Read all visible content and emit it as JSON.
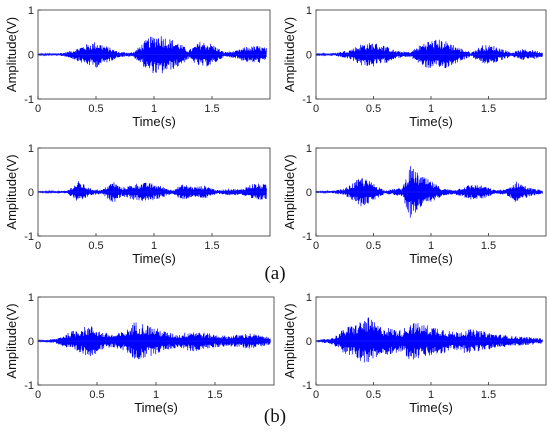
{
  "figure": {
    "captions": [
      "(a)",
      "(b)"
    ]
  },
  "chart_data": [
    {
      "type": "line",
      "panel": "a-1",
      "xlabel": "Time(s)",
      "ylabel": "Amplitude(V)",
      "xlim": [
        0,
        2
      ],
      "ylim": [
        -1,
        1
      ],
      "xticks": [
        0,
        0.5,
        1,
        1.5
      ],
      "yticks": [
        -1,
        0,
        1
      ],
      "color": "#0000ff",
      "envelope": {
        "x": [
          0.0,
          0.22,
          0.3,
          0.4,
          0.5,
          0.6,
          0.7,
          0.82,
          0.95,
          1.05,
          1.1,
          1.2,
          1.3,
          1.4,
          1.5,
          1.6,
          1.7,
          1.8,
          1.9,
          1.97
        ],
        "amp": [
          0.01,
          0.04,
          0.1,
          0.22,
          0.3,
          0.18,
          0.06,
          0.05,
          0.38,
          0.48,
          0.4,
          0.3,
          0.1,
          0.3,
          0.25,
          0.06,
          0.08,
          0.18,
          0.2,
          0.15
        ]
      }
    },
    {
      "type": "line",
      "panel": "a-2",
      "xlabel": "Time(s)",
      "ylabel": "Amplitude(V)",
      "xlim": [
        0,
        2
      ],
      "ylim": [
        -1,
        1
      ],
      "xticks": [
        0,
        0.5,
        1,
        1.5
      ],
      "yticks": [
        -1,
        0,
        1
      ],
      "color": "#0000ff",
      "envelope": {
        "x": [
          0.0,
          0.18,
          0.3,
          0.4,
          0.5,
          0.6,
          0.7,
          0.82,
          0.95,
          1.05,
          1.15,
          1.25,
          1.35,
          1.45,
          1.55,
          1.7,
          1.8,
          1.9,
          1.97
        ],
        "amp": [
          0.01,
          0.04,
          0.12,
          0.25,
          0.28,
          0.2,
          0.08,
          0.06,
          0.3,
          0.35,
          0.3,
          0.15,
          0.05,
          0.22,
          0.2,
          0.05,
          0.12,
          0.1,
          0.05
        ]
      }
    },
    {
      "type": "line",
      "panel": "a-3",
      "xlabel": "Time(s)",
      "ylabel": "Amplitude(V)",
      "xlim": [
        0,
        2
      ],
      "ylim": [
        -1,
        1
      ],
      "xticks": [
        0,
        0.5,
        1,
        1.5
      ],
      "yticks": [
        -1,
        0,
        1
      ],
      "color": "#0000ff",
      "envelope": {
        "x": [
          0.0,
          0.25,
          0.35,
          0.45,
          0.55,
          0.65,
          0.72,
          0.85,
          0.95,
          1.05,
          1.15,
          1.25,
          1.35,
          1.45,
          1.55,
          1.65,
          1.75,
          1.85,
          1.97
        ],
        "amp": [
          0.01,
          0.03,
          0.25,
          0.08,
          0.05,
          0.25,
          0.1,
          0.2,
          0.22,
          0.15,
          0.05,
          0.18,
          0.12,
          0.15,
          0.04,
          0.08,
          0.06,
          0.2,
          0.18
        ]
      }
    },
    {
      "type": "line",
      "panel": "a-4",
      "xlabel": "Time(s)",
      "ylabel": "Amplitude(V)",
      "xlim": [
        0,
        2
      ],
      "ylim": [
        -1,
        1
      ],
      "xticks": [
        0,
        0.5,
        1,
        1.5
      ],
      "yticks": [
        -1,
        0,
        1
      ],
      "color": "#0000ff",
      "envelope": {
        "x": [
          0.0,
          0.15,
          0.25,
          0.4,
          0.5,
          0.6,
          0.75,
          0.82,
          0.9,
          1.0,
          1.1,
          1.2,
          1.35,
          1.45,
          1.55,
          1.65,
          1.75,
          1.85,
          1.97
        ],
        "amp": [
          0.01,
          0.03,
          0.08,
          0.35,
          0.2,
          0.04,
          0.1,
          0.6,
          0.4,
          0.25,
          0.08,
          0.05,
          0.18,
          0.15,
          0.05,
          0.06,
          0.25,
          0.1,
          0.04
        ]
      }
    },
    {
      "type": "line",
      "panel": "b-1",
      "xlabel": "Time(s)",
      "ylabel": "Amplitude(V)",
      "xlim": [
        0,
        2
      ],
      "ylim": [
        -1,
        1
      ],
      "xticks": [
        0,
        0.5,
        1,
        1.5
      ],
      "yticks": [
        -1,
        0,
        1
      ],
      "color": "#0000ff",
      "envelope": {
        "x": [
          0.0,
          0.15,
          0.25,
          0.35,
          0.45,
          0.55,
          0.65,
          0.75,
          0.82,
          0.9,
          1.0,
          1.1,
          1.2,
          1.3,
          1.4,
          1.5,
          1.6,
          1.7,
          1.8,
          1.9,
          1.97
        ],
        "amp": [
          0.01,
          0.05,
          0.18,
          0.3,
          0.35,
          0.2,
          0.15,
          0.25,
          0.45,
          0.4,
          0.3,
          0.2,
          0.15,
          0.25,
          0.2,
          0.15,
          0.12,
          0.15,
          0.18,
          0.12,
          0.08
        ]
      }
    },
    {
      "type": "line",
      "panel": "b-2",
      "xlabel": "Time(s)",
      "ylabel": "Amplitude(V)",
      "xlim": [
        0,
        2
      ],
      "ylim": [
        -1,
        1
      ],
      "xticks": [
        0,
        0.5,
        1,
        1.5
      ],
      "yticks": [
        -1,
        0,
        1
      ],
      "color": "#0000ff",
      "envelope": {
        "x": [
          0.0,
          0.15,
          0.25,
          0.35,
          0.45,
          0.55,
          0.65,
          0.75,
          0.82,
          0.9,
          1.0,
          1.1,
          1.2,
          1.3,
          1.4,
          1.5,
          1.6,
          1.7,
          1.8,
          1.9,
          1.97
        ],
        "amp": [
          0.01,
          0.08,
          0.3,
          0.4,
          0.55,
          0.35,
          0.3,
          0.25,
          0.45,
          0.4,
          0.35,
          0.3,
          0.2,
          0.28,
          0.25,
          0.2,
          0.15,
          0.12,
          0.1,
          0.08,
          0.06
        ]
      }
    }
  ]
}
